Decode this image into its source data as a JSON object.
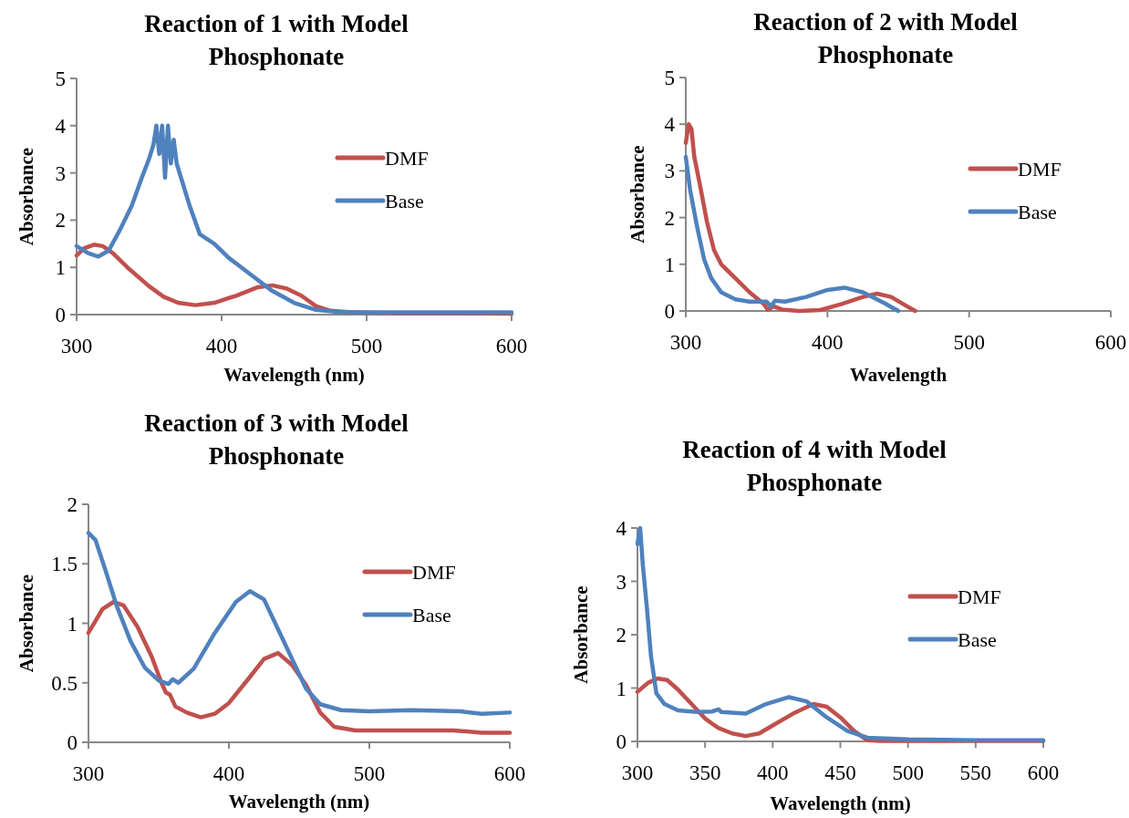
{
  "chart_data": [
    {
      "type": "line",
      "title": "Reaction of 1 with Model Phosphonate",
      "xlabel": "Wavelength (nm)",
      "ylabel": "Absorbance",
      "xlim": [
        300,
        600
      ],
      "xticks": [
        300,
        400,
        500,
        600
      ],
      "ylim": [
        0,
        5
      ],
      "yticks": [
        0,
        1,
        2,
        3,
        4,
        5
      ],
      "legend": "right",
      "grid": false,
      "series": [
        {
          "name": "DMF",
          "color": "#c0504d",
          "x": [
            300,
            305,
            312,
            318,
            325,
            335,
            350,
            360,
            370,
            382,
            395,
            410,
            425,
            435,
            445,
            455,
            465,
            475,
            490,
            520,
            560,
            600
          ],
          "values": [
            1.25,
            1.4,
            1.48,
            1.45,
            1.3,
            1.0,
            0.6,
            0.38,
            0.25,
            0.2,
            0.25,
            0.4,
            0.58,
            0.62,
            0.55,
            0.4,
            0.18,
            0.08,
            0.05,
            0.03,
            0.03,
            0.02
          ]
        },
        {
          "name": "Base",
          "color": "#4f81bd",
          "x": [
            300,
            308,
            315,
            322,
            330,
            338,
            345,
            350,
            353,
            355,
            357,
            359,
            361,
            363,
            365,
            367,
            369,
            372,
            378,
            385,
            395,
            405,
            420,
            435,
            450,
            465,
            480,
            500,
            560,
            600
          ],
          "values": [
            1.45,
            1.3,
            1.23,
            1.35,
            1.8,
            2.3,
            2.9,
            3.3,
            3.6,
            4.0,
            3.4,
            4.0,
            2.9,
            4.0,
            3.2,
            3.7,
            3.2,
            2.9,
            2.3,
            1.7,
            1.5,
            1.2,
            0.85,
            0.5,
            0.25,
            0.1,
            0.06,
            0.05,
            0.05,
            0.05
          ]
        }
      ]
    },
    {
      "type": "line",
      "title": "Reaction of 2 with Model Phosphonate",
      "xlabel": "Wavelength",
      "ylabel": "Absorbance",
      "xlim": [
        300,
        600
      ],
      "xticks": [
        300,
        400,
        500,
        600
      ],
      "ylim": [
        0,
        5
      ],
      "yticks": [
        0,
        1,
        2,
        3,
        4,
        5
      ],
      "legend": "right",
      "grid": false,
      "series": [
        {
          "name": "DMF",
          "color": "#c0504d",
          "x": [
            300,
            302,
            304,
            306,
            310,
            315,
            320,
            325,
            335,
            345,
            355,
            358,
            362,
            368,
            380,
            395,
            410,
            425,
            435,
            445,
            455,
            462
          ],
          "values": [
            3.6,
            4.0,
            3.9,
            3.3,
            2.7,
            1.9,
            1.3,
            1.0,
            0.7,
            0.4,
            0.15,
            0.02,
            0.1,
            0.03,
            0.0,
            0.02,
            0.15,
            0.3,
            0.37,
            0.3,
            0.12,
            0.0
          ]
        },
        {
          "name": "Base",
          "color": "#4f81bd",
          "x": [
            300,
            303,
            308,
            313,
            318,
            325,
            335,
            345,
            357,
            360,
            363,
            370,
            385,
            400,
            412,
            425,
            440,
            450
          ],
          "values": [
            3.3,
            2.6,
            1.8,
            1.1,
            0.7,
            0.4,
            0.25,
            0.2,
            0.2,
            0.1,
            0.22,
            0.2,
            0.3,
            0.45,
            0.5,
            0.4,
            0.17,
            0.0
          ]
        }
      ]
    },
    {
      "type": "line",
      "title": "Reaction of 3 with Model Phosphonate",
      "xlabel": "Wavelength (nm)",
      "ylabel": "Absorbance",
      "xlim": [
        300,
        600
      ],
      "xticks": [
        300,
        400,
        500,
        600
      ],
      "ylim": [
        0,
        2
      ],
      "yticks": [
        0,
        0.5,
        1,
        1.5,
        2
      ],
      "legend": "right",
      "grid": false,
      "series": [
        {
          "name": "DMF",
          "color": "#c0504d",
          "x": [
            300,
            310,
            318,
            325,
            335,
            345,
            352,
            355,
            358,
            362,
            370,
            380,
            390,
            400,
            415,
            425,
            435,
            445,
            455,
            465,
            475,
            490,
            520,
            560,
            580,
            600
          ],
          "values": [
            0.92,
            1.12,
            1.18,
            1.15,
            0.97,
            0.72,
            0.5,
            0.42,
            0.4,
            0.3,
            0.25,
            0.21,
            0.24,
            0.33,
            0.55,
            0.7,
            0.75,
            0.65,
            0.48,
            0.25,
            0.13,
            0.1,
            0.1,
            0.1,
            0.08,
            0.08
          ]
        },
        {
          "name": "Base",
          "color": "#4f81bd",
          "x": [
            300,
            305,
            312,
            320,
            330,
            340,
            350,
            357,
            360,
            364,
            375,
            390,
            405,
            415,
            425,
            435,
            445,
            455,
            465,
            480,
            500,
            530,
            565,
            580,
            600
          ],
          "values": [
            1.76,
            1.7,
            1.45,
            1.15,
            0.85,
            0.63,
            0.52,
            0.49,
            0.53,
            0.5,
            0.62,
            0.92,
            1.18,
            1.27,
            1.2,
            0.95,
            0.7,
            0.45,
            0.32,
            0.27,
            0.26,
            0.27,
            0.26,
            0.24,
            0.25
          ]
        }
      ]
    },
    {
      "type": "line",
      "title": "Reaction of 4 with Model Phosphonate",
      "xlabel": "Wavelength (nm)",
      "ylabel": "Absorbance",
      "xlim": [
        300,
        600
      ],
      "xticks": [
        300,
        350,
        400,
        450,
        500,
        550,
        600
      ],
      "ylim": [
        0,
        4
      ],
      "yticks": [
        0,
        1,
        2,
        3,
        4
      ],
      "legend": "right",
      "grid": false,
      "series": [
        {
          "name": "DMF",
          "color": "#c0504d",
          "x": [
            300,
            308,
            315,
            322,
            330,
            340,
            350,
            357,
            360,
            370,
            380,
            390,
            400,
            415,
            430,
            440,
            450,
            460,
            470,
            480,
            600
          ],
          "values": [
            0.93,
            1.1,
            1.18,
            1.15,
            0.97,
            0.7,
            0.43,
            0.3,
            0.25,
            0.15,
            0.1,
            0.15,
            0.3,
            0.52,
            0.7,
            0.65,
            0.45,
            0.2,
            0.02,
            0.01,
            0.01
          ]
        },
        {
          "name": "Base",
          "color": "#4f81bd",
          "x": [
            300,
            302,
            304,
            307,
            310,
            314,
            320,
            330,
            345,
            355,
            360,
            362,
            380,
            395,
            412,
            425,
            440,
            455,
            470,
            500,
            550,
            600
          ],
          "values": [
            3.7,
            4.0,
            3.3,
            2.5,
            1.6,
            0.9,
            0.7,
            0.58,
            0.55,
            0.56,
            0.6,
            0.55,
            0.52,
            0.7,
            0.83,
            0.75,
            0.45,
            0.2,
            0.07,
            0.04,
            0.02,
            0.02
          ]
        }
      ]
    }
  ]
}
